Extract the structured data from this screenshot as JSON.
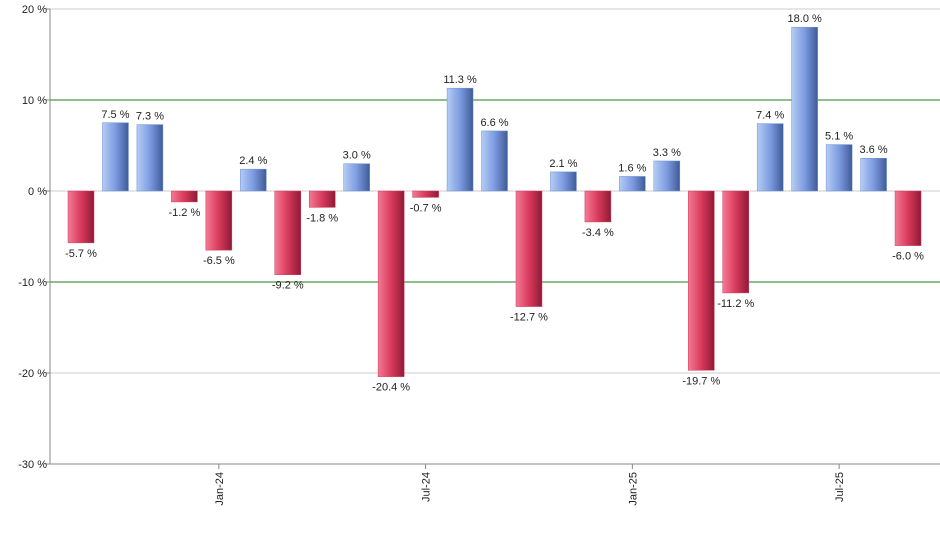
{
  "chart_data": {
    "type": "bar",
    "categories": [
      null,
      null,
      null,
      null,
      "Jan-24",
      null,
      null,
      null,
      null,
      null,
      "Jul-24",
      null,
      null,
      null,
      null,
      null,
      "Jan-25",
      null,
      null,
      null,
      null,
      null,
      "Jul-25",
      null,
      null
    ],
    "values": [
      -5.7,
      7.5,
      7.3,
      -1.2,
      -6.5,
      2.4,
      -9.2,
      -1.8,
      3.0,
      -20.4,
      -0.7,
      11.3,
      6.6,
      -12.7,
      2.1,
      -3.4,
      1.6,
      3.3,
      -19.7,
      -11.2,
      7.4,
      18.0,
      5.1,
      3.6,
      -6.0
    ],
    "value_labels": [
      "-5.7 %",
      "7.5 %",
      "7.3 %",
      "-1.2 %",
      "-6.5 %",
      "2.4 %",
      "-9.2 %",
      "-1.8 %",
      "3.0 %",
      "-20.4 %",
      "-0.7 %",
      "11.3 %",
      "6.6 %",
      "-12.7 %",
      "2.1 %",
      "-3.4 %",
      "1.6 %",
      "3.3 %",
      "-19.7 %",
      "-11.2 %",
      "7.4 %",
      "18.0 %",
      "5.1 %",
      "3.6 %",
      "-6.0 %"
    ],
    "positive_color": "#6f8fd0",
    "negative_color": "#d03a5a",
    "ylim": [
      -30,
      20
    ],
    "yticks": [
      {
        "value": -30,
        "label": "-30 %"
      },
      {
        "value": -20,
        "label": "-20 %"
      },
      {
        "value": -10,
        "label": "-10 %"
      },
      {
        "value": 0,
        "label": "0 %"
      },
      {
        "value": 10,
        "label": "10 %"
      },
      {
        "value": 20,
        "label": "20 %"
      }
    ],
    "grid": true,
    "highlight_lines": {
      "values": [
        -10,
        10
      ],
      "color": "#1a7f1a"
    }
  }
}
